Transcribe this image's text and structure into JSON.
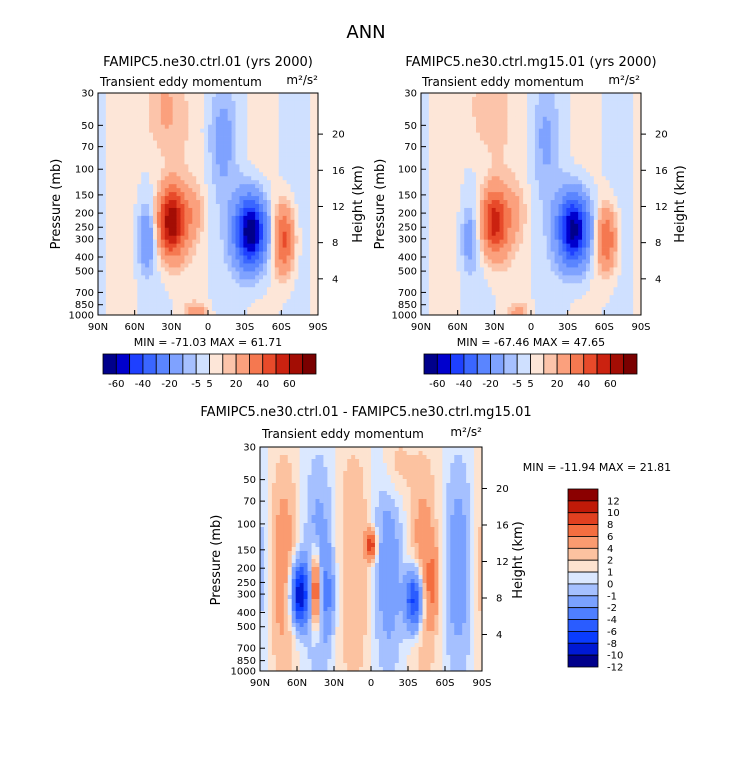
{
  "figure": {
    "title": "ANN"
  },
  "palettes": {
    "diverging": [
      "#00008b",
      "#0000cd",
      "#1e40ff",
      "#3a66ff",
      "#5a85ff",
      "#7fa2ff",
      "#a6c0ff",
      "#cfe0ff",
      "#fde6d8",
      "#fcc4aa",
      "#fba07d",
      "#f57850",
      "#e84a2a",
      "#cb2210",
      "#a30d04",
      "#7a0000"
    ],
    "diff": [
      "#00008b",
      "#0019d4",
      "#0a3cff",
      "#2a5cff",
      "#4f7fff",
      "#7aa1ff",
      "#a5c0ff",
      "#dbe8ff",
      "#fde3d0",
      "#fcc2a0",
      "#fa9b70",
      "#f46e40",
      "#e14020",
      "#c01a08",
      "#8b0000"
    ]
  },
  "chart_data": [
    {
      "id": "ctrl",
      "type": "contour",
      "title": "FAMIPC5.ne30.ctrl.01 (yrs 2000)",
      "subtitle": "Transient eddy momentum",
      "units": "m²/s²",
      "ylabel": "Pressure (mb)",
      "ylabel_right": "Height (km)",
      "pressure_ticks": [
        30,
        50,
        70,
        100,
        150,
        200,
        250,
        300,
        400,
        500,
        700,
        850,
        1000
      ],
      "height_ticks": [
        20,
        16,
        12,
        8,
        4
      ],
      "lat_ticks": [
        "90N",
        "60N",
        "30N",
        "0",
        "30S",
        "60S",
        "90S"
      ],
      "stats": "MIN = -71.03   MAX =  61.71",
      "levels": [
        -60,
        -50,
        -40,
        -30,
        -20,
        -10,
        -5,
        0,
        5,
        10,
        20,
        30,
        40,
        50,
        60
      ],
      "level_labels": [
        "-60",
        "-40",
        "-20",
        "-5",
        "5",
        "20",
        "40",
        "60"
      ],
      "features": [
        {
          "lat": 30,
          "p": 230,
          "amp": 60,
          "wlat": 8,
          "wz": 0.38
        },
        {
          "lat": 50,
          "p": 300,
          "amp": -20,
          "wlat": 5,
          "wz": 0.35
        },
        {
          "lat": -35,
          "p": 270,
          "amp": -70,
          "wlat": 9,
          "wz": 0.4
        },
        {
          "lat": -62,
          "p": 300,
          "amp": 35,
          "wlat": 6,
          "wz": 0.38
        },
        {
          "lat": 12,
          "p": 200,
          "amp": 10,
          "wlat": 6,
          "wz": 0.3
        },
        {
          "lat": -12,
          "p": 60,
          "amp": -12,
          "wlat": 8,
          "wz": 0.6
        },
        {
          "lat": 35,
          "p": 40,
          "amp": 12,
          "wlat": 12,
          "wz": 0.6
        },
        {
          "lat": 10,
          "p": 950,
          "amp": 15,
          "wlat": 6,
          "wz": 0.1
        }
      ]
    },
    {
      "id": "mg15",
      "type": "contour",
      "title": "FAMIPC5.ne30.ctrl.mg15.01 (yrs 2000)",
      "subtitle": "Transient eddy momentum",
      "units": "m²/s²",
      "ylabel": "Pressure (mb)",
      "ylabel_right": "Height (km)",
      "pressure_ticks": [
        30,
        50,
        70,
        100,
        150,
        200,
        250,
        300,
        400,
        500,
        700,
        850,
        1000
      ],
      "height_ticks": [
        20,
        16,
        12,
        8,
        4
      ],
      "lat_ticks": [
        "90N",
        "60N",
        "30N",
        "0",
        "30S",
        "60S",
        "90S"
      ],
      "stats": "MIN = -67.46   MAX =  47.65",
      "levels": [
        -60,
        -50,
        -40,
        -30,
        -20,
        -10,
        -5,
        0,
        5,
        10,
        20,
        30,
        40,
        50,
        60
      ],
      "level_labels": [
        "-60",
        "-40",
        "-20",
        "-5",
        "5",
        "20",
        "40",
        "60"
      ],
      "features": [
        {
          "lat": 30,
          "p": 230,
          "amp": 46,
          "wlat": 8,
          "wz": 0.38
        },
        {
          "lat": 50,
          "p": 300,
          "amp": -14,
          "wlat": 5,
          "wz": 0.35
        },
        {
          "lat": -35,
          "p": 260,
          "amp": -66,
          "wlat": 9,
          "wz": 0.4
        },
        {
          "lat": -62,
          "p": 300,
          "amp": 30,
          "wlat": 6,
          "wz": 0.38
        },
        {
          "lat": 12,
          "p": 200,
          "amp": 8,
          "wlat": 6,
          "wz": 0.3
        },
        {
          "lat": -12,
          "p": 60,
          "amp": -10,
          "wlat": 8,
          "wz": 0.6
        },
        {
          "lat": 35,
          "p": 40,
          "amp": 10,
          "wlat": 12,
          "wz": 0.6
        },
        {
          "lat": 10,
          "p": 950,
          "amp": 12,
          "wlat": 6,
          "wz": 0.1
        }
      ]
    },
    {
      "id": "diff",
      "type": "contour",
      "title": "FAMIPC5.ne30.ctrl.01 - FAMIPC5.ne30.ctrl.mg15.01",
      "subtitle": "Transient eddy momentum",
      "units": "m²/s²",
      "ylabel": "Pressure (mb)",
      "ylabel_right": "Height (km)",
      "pressure_ticks": [
        30,
        50,
        70,
        100,
        150,
        200,
        250,
        300,
        400,
        500,
        700,
        850,
        1000
      ],
      "height_ticks": [
        20,
        16,
        12,
        8,
        4
      ],
      "lat_ticks": [
        "90N",
        "60N",
        "30N",
        "0",
        "30S",
        "60S",
        "90S"
      ],
      "stats": "MIN = -11.94   MAX =  21.81",
      "levels": [
        -12,
        -10,
        -8,
        -6,
        -4,
        -2,
        -1,
        0,
        1,
        2,
        4,
        6,
        8,
        10,
        12
      ],
      "level_labels": [
        "12",
        "10",
        "8",
        "6",
        "4",
        "2",
        "1",
        "0",
        "-1",
        "-2",
        "-4",
        "-6",
        "-8",
        "-10",
        "-12"
      ],
      "features": [
        {
          "lat": 58,
          "p": 300,
          "amp": -12,
          "wlat": 5,
          "wz": 0.35
        },
        {
          "lat": 45,
          "p": 280,
          "amp": 9,
          "wlat": 3,
          "wz": 0.4
        },
        {
          "lat": 35,
          "p": 300,
          "amp": -3,
          "wlat": 4,
          "wz": 0.4
        },
        {
          "lat": 0,
          "p": 140,
          "amp": 8,
          "wlat": 3,
          "wz": 0.15
        },
        {
          "lat": -35,
          "p": 330,
          "amp": -10,
          "wlat": 5,
          "wz": 0.35
        },
        {
          "lat": -50,
          "p": 250,
          "amp": 3,
          "wlat": 4,
          "wz": 0.4
        },
        {
          "lat": -20,
          "p": 40,
          "amp": 2,
          "wlat": 8,
          "wz": 0.4
        },
        {
          "lat": 15,
          "p": 200,
          "amp": -2,
          "wlat": 5,
          "wz": 0.5
        }
      ]
    }
  ]
}
